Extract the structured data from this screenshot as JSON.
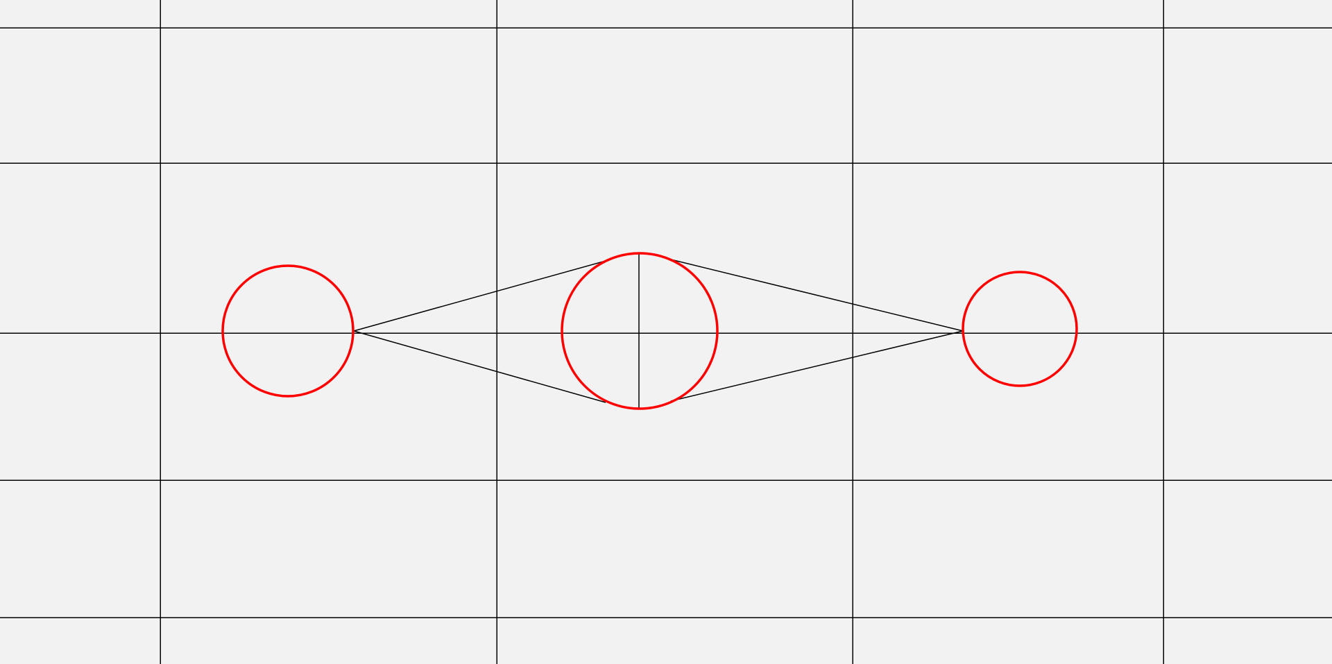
{
  "colors": {
    "background": "#f2f2f2",
    "grid": "#000000",
    "construction": "#000000",
    "circle": "#ff0000"
  }
}
